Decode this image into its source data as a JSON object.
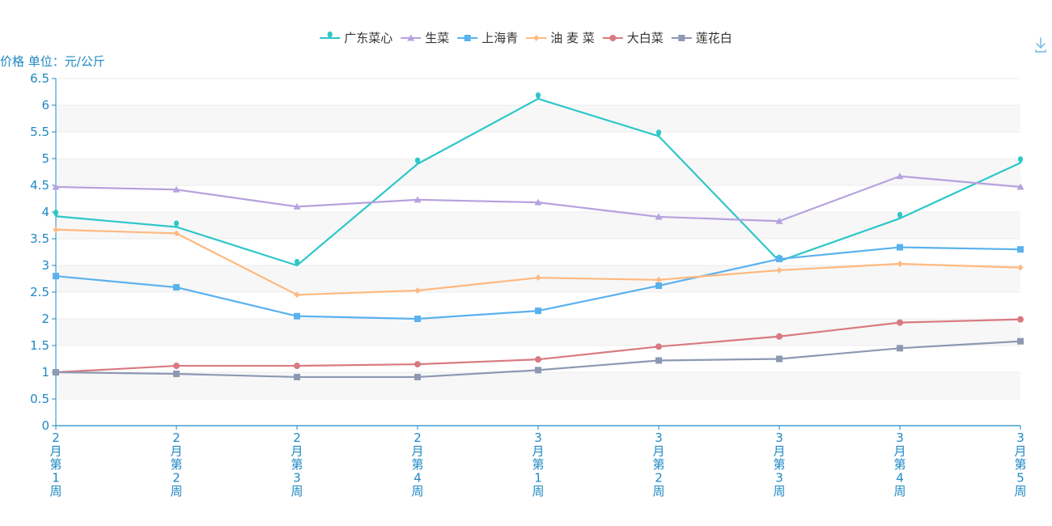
{
  "chart_data": {
    "type": "line",
    "ylabel": "价格 单位：元/公斤",
    "ylim": [
      0,
      6.5
    ],
    "y_ticks": [
      0,
      0.5,
      1,
      1.5,
      2,
      2.5,
      3,
      3.5,
      4,
      4.5,
      5,
      5.5,
      6,
      6.5
    ],
    "categories": [
      "2月第1周",
      "2月第2周",
      "2月第3周",
      "2月第4周",
      "3月第1周",
      "3月第2周",
      "3月第3周",
      "3月第4周",
      "3月第5周"
    ],
    "grid": "horizontal bands",
    "legend_position": "top-center",
    "series": [
      {
        "name": "广东菜心",
        "color": "#2ec7c9",
        "marker": "pin",
        "values": [
          3.92,
          3.72,
          3.0,
          4.9,
          6.12,
          5.42,
          3.08,
          3.88,
          4.92
        ]
      },
      {
        "name": "生菜",
        "color": "#b6a2de",
        "marker": "triangle",
        "values": [
          4.47,
          4.42,
          4.1,
          4.23,
          4.18,
          3.91,
          3.83,
          4.67,
          4.47
        ]
      },
      {
        "name": "上海青",
        "color": "#5ab1ef",
        "marker": "square",
        "values": [
          2.8,
          2.59,
          2.05,
          2.0,
          2.15,
          2.62,
          3.12,
          3.34,
          3.3
        ]
      },
      {
        "name": "油 麦 菜",
        "color": "#ffb980",
        "marker": "diamond",
        "values": [
          3.67,
          3.6,
          2.45,
          2.53,
          2.77,
          2.73,
          2.91,
          3.03,
          2.96
        ]
      },
      {
        "name": "大白菜",
        "color": "#d87a80",
        "marker": "circle",
        "values": [
          1.0,
          1.12,
          1.12,
          1.15,
          1.24,
          1.48,
          1.67,
          1.93,
          1.99
        ]
      },
      {
        "name": "莲花白",
        "color": "#8d98b3",
        "marker": "square",
        "values": [
          1.0,
          0.97,
          0.91,
          0.91,
          1.04,
          1.22,
          1.25,
          1.45,
          1.58
        ]
      }
    ]
  },
  "toolbox": {
    "download_icon": "download-icon"
  }
}
